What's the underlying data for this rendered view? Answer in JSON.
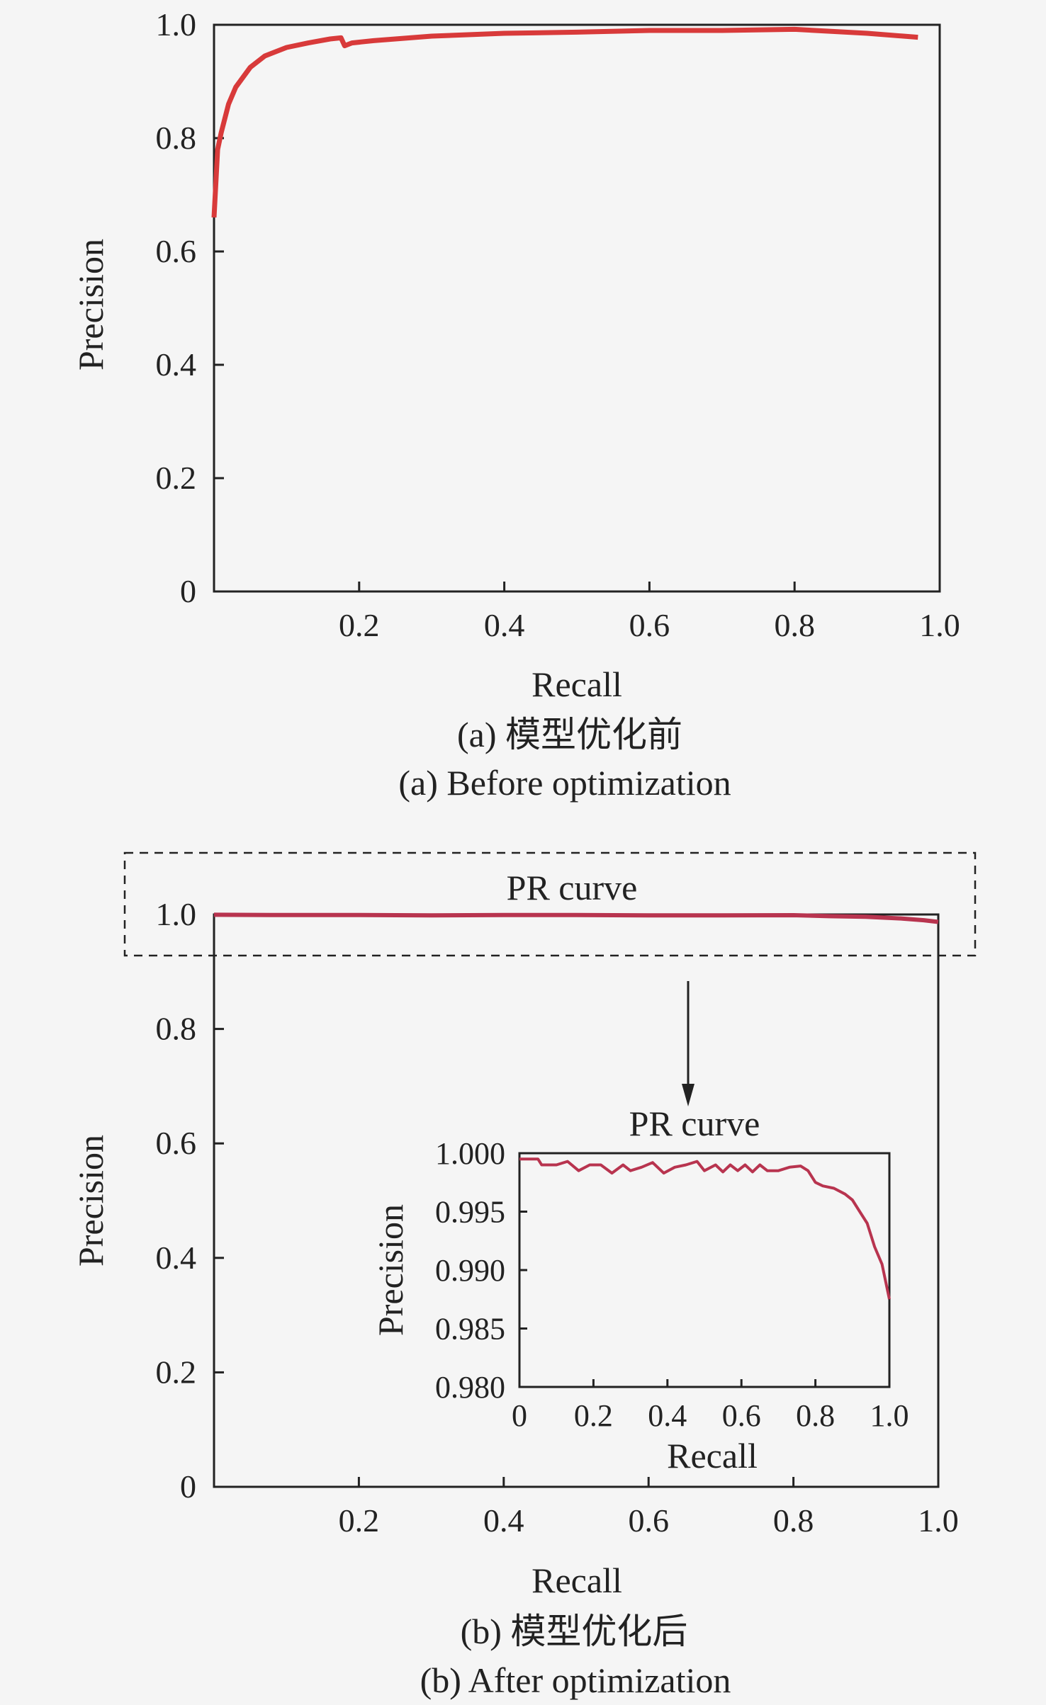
{
  "chart_data": [
    {
      "type": "line",
      "panel": "a",
      "xlabel": "Recall",
      "ylabel": "Precision",
      "xlim": [
        0,
        1.0
      ],
      "ylim": [
        0,
        1.0
      ],
      "xticks": [
        "0.2",
        "0.4",
        "0.6",
        "0.8",
        "1.0"
      ],
      "yticks": [
        "0",
        "0.2",
        "0.4",
        "0.6",
        "0.8",
        "1.0"
      ],
      "grid": false,
      "caption_cn": "(a) 模型优化前",
      "caption_en": "(a) Before optimization",
      "color": "#d83a3a",
      "series": [
        {
          "x": [
            0.0,
            0.005,
            0.01,
            0.02,
            0.03,
            0.05,
            0.07,
            0.1,
            0.13,
            0.16,
            0.175,
            0.18,
            0.19,
            0.22,
            0.3,
            0.4,
            0.5,
            0.6,
            0.7,
            0.8,
            0.9,
            0.95,
            0.97
          ],
          "y": [
            0.66,
            0.78,
            0.81,
            0.86,
            0.89,
            0.925,
            0.945,
            0.96,
            0.968,
            0.975,
            0.977,
            0.963,
            0.968,
            0.972,
            0.98,
            0.985,
            0.987,
            0.99,
            0.99,
            0.992,
            0.985,
            0.98,
            0.978
          ]
        }
      ]
    },
    {
      "type": "line",
      "panel": "b",
      "xlabel": "Recall",
      "ylabel": "Precision",
      "xlim": [
        0,
        1.0
      ],
      "ylim": [
        0,
        1.0
      ],
      "xticks": [
        "0.2",
        "0.4",
        "0.6",
        "0.8",
        "1.0"
      ],
      "yticks": [
        "0",
        "0.2",
        "0.4",
        "0.6",
        "0.8",
        "1.0"
      ],
      "grid": false,
      "highlight_label": "PR curve",
      "caption_cn": "(b) 模型优化后",
      "caption_en": "(b) After optimization",
      "color": "#b8344f",
      "series": [
        {
          "x": [
            0.0,
            0.1,
            0.2,
            0.3,
            0.4,
            0.5,
            0.6,
            0.7,
            0.8,
            0.85,
            0.9,
            0.95,
            0.98,
            1.0
          ],
          "y": [
            0.9995,
            0.999,
            0.999,
            0.9985,
            0.999,
            0.999,
            0.9985,
            0.9985,
            0.9988,
            0.997,
            0.996,
            0.993,
            0.99,
            0.987
          ]
        }
      ],
      "inset": {
        "title": "PR curve",
        "xlabel": "Recall",
        "ylabel": "Precision",
        "xlim": [
          0,
          1.0
        ],
        "ylim": [
          0.98,
          1.0
        ],
        "xticks": [
          "0",
          "0.2",
          "0.4",
          "0.6",
          "0.8",
          "1.0"
        ],
        "yticks": [
          "0.980",
          "0.985",
          "0.990",
          "0.995",
          "1.000"
        ],
        "series": [
          {
            "x": [
              0.0,
              0.05,
              0.06,
              0.1,
              0.13,
              0.16,
              0.19,
              0.22,
              0.25,
              0.28,
              0.3,
              0.33,
              0.36,
              0.39,
              0.42,
              0.45,
              0.48,
              0.5,
              0.53,
              0.55,
              0.57,
              0.59,
              0.61,
              0.63,
              0.65,
              0.67,
              0.7,
              0.73,
              0.76,
              0.78,
              0.8,
              0.82,
              0.85,
              0.88,
              0.9,
              0.92,
              0.94,
              0.96,
              0.98,
              1.0
            ],
            "y": [
              0.9995,
              0.9995,
              0.999,
              0.999,
              0.9993,
              0.9985,
              0.999,
              0.999,
              0.9983,
              0.999,
              0.9985,
              0.9988,
              0.9992,
              0.9983,
              0.9988,
              0.999,
              0.9993,
              0.9985,
              0.999,
              0.9984,
              0.999,
              0.9985,
              0.999,
              0.9984,
              0.999,
              0.9985,
              0.9985,
              0.9988,
              0.9989,
              0.9985,
              0.9975,
              0.9972,
              0.997,
              0.9965,
              0.996,
              0.995,
              0.994,
              0.992,
              0.9905,
              0.9875
            ]
          }
        ]
      }
    }
  ]
}
